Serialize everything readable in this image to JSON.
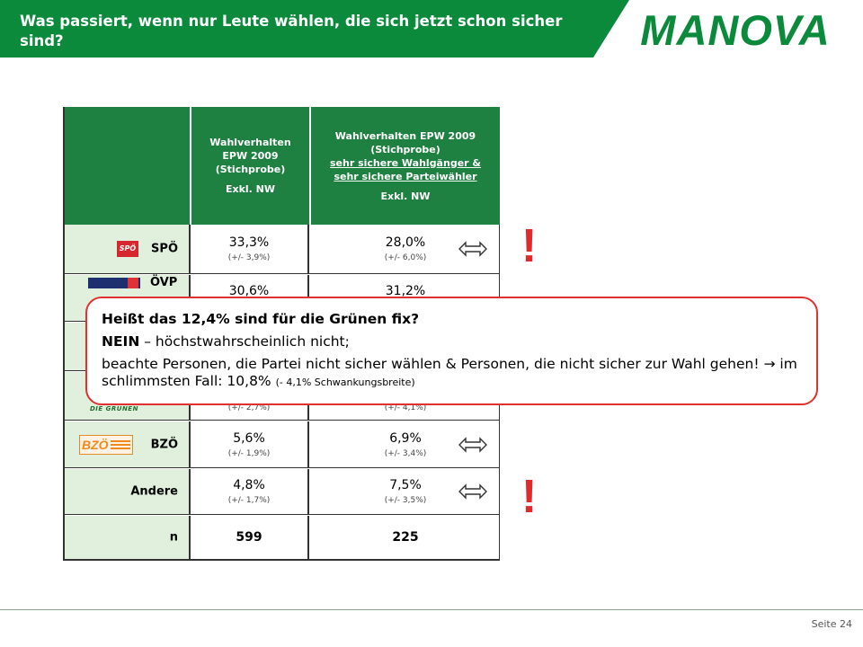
{
  "header": {
    "title": "Was passiert, wenn nur Leute wählen, die sich jetzt schon sicher sind?",
    "logo_text": "MANOVA",
    "band_color": "#0b8a3c"
  },
  "table": {
    "header": {
      "col1": {
        "line1": "Wahlverhalten",
        "line2": "EPW 2009",
        "line3": "(Stichprobe)",
        "note": "Exkl. NW"
      },
      "col2": {
        "line1": "Wahlverhalten EPW 2009",
        "line2": "(Stichprobe)",
        "underline1": "sehr sichere Wahlgänger &",
        "underline2": "sehr sichere Parteiwähler",
        "note": "Exkl. NW"
      }
    },
    "rows": [
      {
        "party": "SPÖ",
        "logo": "spo-logo",
        "v1": "33,3%",
        "ci1": "(+/- 3,9%)",
        "v2": "28,0%",
        "ci2": "(+/- 6,0%)",
        "arrow": "double-arrow-icon"
      },
      {
        "party": "ÖVP",
        "logo": "ovp-logo",
        "v1": "30,6%",
        "ci1": "",
        "v2": "31,2%",
        "ci2": "",
        "arrow": "double-arrow-icon"
      },
      {
        "party": "",
        "logo": "",
        "v1": "",
        "ci1": "",
        "v2": "",
        "ci2": "",
        "arrow": ""
      },
      {
        "party": "",
        "logo": "gruene-logo",
        "logo_text": "DIE GRÜNEN",
        "v1": "",
        "ci1": "(+/- 2,7%)",
        "v2": "",
        "ci2": "(+/- 4,1%)",
        "arrow": ""
      },
      {
        "party": "BZÖ",
        "logo": "bzo-logo",
        "logo_text": "BZÖ",
        "v1": "5,6%",
        "ci1": "(+/- 1,9%)",
        "v2": "6,9%",
        "ci2": "(+/- 3,4%)",
        "arrow": "double-arrow-icon"
      },
      {
        "party": "Andere",
        "logo": "",
        "v1": "4,8%",
        "ci1": "(+/- 1,7%)",
        "v2": "7,5%",
        "ci2": "(+/- 3,5%)",
        "arrow": "double-arrow-icon"
      },
      {
        "party": "n",
        "logo": "",
        "v1": "599",
        "ci1": "",
        "v2": "225",
        "ci2": "",
        "arrow": ""
      }
    ]
  },
  "exclamations": [
    "!",
    "!"
  ],
  "callout": {
    "line1": "Heißt das 12,4% sind für die Grünen fix?",
    "line2_bold": "NEIN",
    "line2_rest": " – höchstwahrscheinlich nicht;",
    "line3a": "beachte Personen, die Partei nicht sicher wählen & Personen, die nicht sicher zur Wahl gehen! ",
    "line3_arrow": "→",
    "line3b": " im schlimmsten Fall: 10,8% ",
    "line3_small": "(- 4,1% Schwankungsbreite)",
    "border_color": "#e03030"
  },
  "footer": {
    "page": "Seite 24"
  }
}
